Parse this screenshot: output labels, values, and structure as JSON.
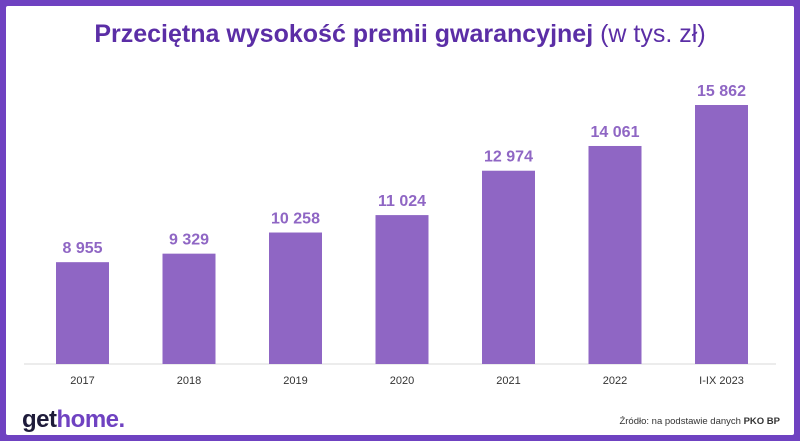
{
  "title": {
    "main": "Przeciętna wysokość premii gwarancyjnej",
    "unit": "(w tys. zł)"
  },
  "brand": {
    "get": "get",
    "home": "home",
    "dot": "."
  },
  "source": {
    "prefix": "Źródło: na podstawie danych",
    "bold": "PKO BP"
  },
  "colors": {
    "bar": "#8f66c4",
    "label": "#8f66c4",
    "title": "#5b2ea6",
    "frame": "#6f42c1",
    "brand_get": "#1e1b3a",
    "brand_home": "#6f42c1"
  },
  "chart_data": {
    "type": "bar",
    "categories": [
      "2017",
      "2018",
      "2019",
      "2020",
      "2021",
      "2022",
      "I-IX 2023"
    ],
    "values": [
      8955,
      9329,
      10258,
      11024,
      12974,
      14061,
      15862
    ],
    "value_labels": [
      "8 955",
      "9 329",
      "10 258",
      "11 024",
      "12 974",
      "14 061",
      "15 862"
    ],
    "title": "Przeciętna wysokość premii gwarancyjnej (w tys. zł)",
    "xlabel": "",
    "ylabel": "",
    "ylim": [
      4480,
      15862
    ],
    "grid": false,
    "legend": "none"
  }
}
